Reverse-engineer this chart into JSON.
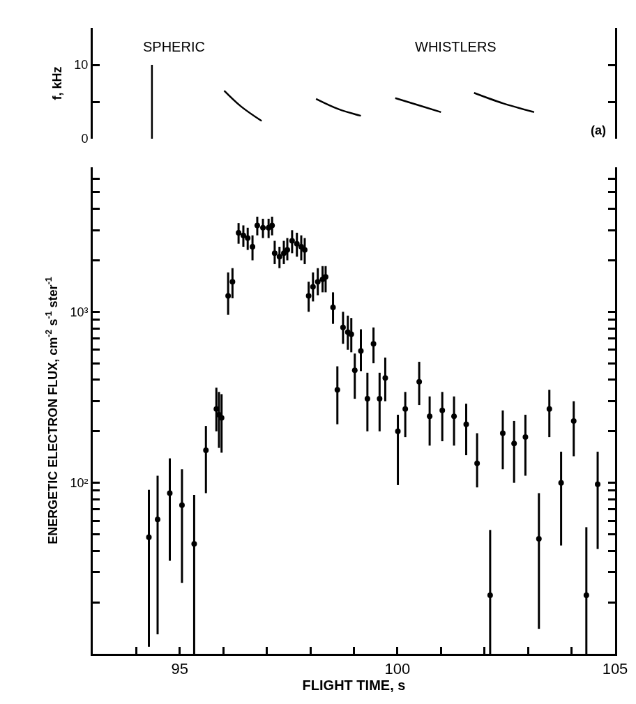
{
  "chart_data": [
    {
      "type": "line",
      "ylabel": "f, kHz",
      "xlim": [
        93,
        105
      ],
      "ylim": [
        0,
        15
      ],
      "yticks": [
        0,
        {
          "value": 5,
          "label": null
        },
        10
      ],
      "tick_labels": "y",
      "line_style": "solid",
      "annotations": [
        "SPHERIC",
        "WHISTLERS",
        "(a)"
      ],
      "series": [
        {
          "color": "#000000",
          "x": [
            94.36,
            94.36
          ],
          "values": [
            0,
            10
          ]
        },
        {
          "color": "#000000",
          "x": [
            96.02,
            96.4,
            96.88
          ],
          "values": [
            6.5,
            4.4,
            2.4
          ]
        },
        {
          "color": "#000000",
          "x": [
            98.13,
            98.65,
            99.16
          ],
          "values": [
            5.4,
            4.0,
            3.1
          ]
        },
        {
          "color": "#000000",
          "x": [
            99.95,
            100.5,
            101.0
          ],
          "values": [
            5.5,
            4.5,
            3.6
          ]
        },
        {
          "color": "#000000",
          "x": [
            101.76,
            102.42,
            103.14
          ],
          "values": [
            6.2,
            4.8,
            3.6
          ]
        }
      ]
    },
    {
      "type": "scatter",
      "xlabel": "FLIGHT TIME, s",
      "ylabel": "ENERGETIC ELECTRON FLUX, cm$^{-2}$ s$^{-1}$ ster$^{-1}$",
      "log": "y",
      "marker": "circle",
      "color": "#000000",
      "xlim": [
        93,
        105
      ],
      "ylim": [
        10,
        7000
      ],
      "xticks": [
        {
          "value": 94,
          "label": null
        },
        95,
        {
          "value": 96,
          "label": null
        },
        {
          "value": 97,
          "label": null
        },
        {
          "value": 98,
          "label": null
        },
        {
          "value": 99,
          "label": null
        },
        100,
        {
          "value": 101,
          "label": null
        },
        {
          "value": 102,
          "label": null
        },
        {
          "value": 103,
          "label": null
        },
        {
          "value": 104,
          "label": null
        },
        105
      ],
      "yticks": [
        {
          "value": 20,
          "label": null
        },
        {
          "value": 30,
          "label": null
        },
        {
          "value": 40,
          "label": null
        },
        {
          "value": 50,
          "label": null
        },
        {
          "value": 60,
          "label": null
        },
        {
          "value": 70,
          "label": null
        },
        {
          "value": 80,
          "label": null
        },
        {
          "value": 90,
          "label": null
        },
        {
          "value": 100,
          "label": "10²"
        },
        {
          "value": 200,
          "label": null
        },
        {
          "value": 300,
          "label": null
        },
        {
          "value": 400,
          "label": null
        },
        {
          "value": 500,
          "label": null
        },
        {
          "value": 600,
          "label": null
        },
        {
          "value": 700,
          "label": null
        },
        {
          "value": 800,
          "label": null
        },
        {
          "value": 900,
          "label": null
        },
        {
          "value": 1000,
          "label": "10³"
        },
        {
          "value": 2000,
          "label": null
        },
        {
          "value": 3000,
          "label": null
        },
        {
          "value": 4000,
          "label": null
        },
        {
          "value": 5000,
          "label": null
        },
        {
          "value": 6000,
          "label": null
        }
      ],
      "x": [
        94.29,
        94.49,
        94.77,
        95.05,
        95.33,
        95.6,
        95.84,
        95.9,
        95.96,
        96.11,
        96.21,
        96.35,
        96.46,
        96.56,
        96.67,
        96.78,
        96.91,
        97.04,
        97.12,
        97.18,
        97.29,
        97.39,
        97.47,
        97.58,
        97.69,
        97.79,
        97.87,
        97.96,
        98.06,
        98.17,
        98.28,
        98.35,
        98.52,
        98.62,
        98.75,
        98.86,
        98.94,
        99.02,
        99.16,
        99.31,
        99.45,
        99.59,
        99.72,
        100.01,
        100.18,
        100.5,
        100.74,
        101.03,
        101.3,
        101.58,
        101.83,
        102.13,
        102.42,
        102.68,
        102.94,
        103.25,
        103.49,
        103.76,
        104.05,
        104.34,
        104.6
      ],
      "values": [
        48,
        61,
        87,
        74,
        44,
        155,
        270,
        250,
        240,
        1240,
        1500,
        2900,
        2800,
        2700,
        2400,
        3200,
        3100,
        3100,
        3200,
        2200,
        2100,
        2200,
        2300,
        2600,
        2500,
        2400,
        2300,
        1240,
        1400,
        1500,
        1550,
        1600,
        1060,
        350,
        810,
        760,
        740,
        455,
        590,
        310,
        650,
        310,
        410,
        200,
        270,
        390,
        245,
        265,
        245,
        220,
        130,
        22,
        195,
        170,
        185,
        47,
        270,
        100,
        230,
        22,
        98
      ],
      "errors": [
        [
          11,
          91
        ],
        [
          13,
          110
        ],
        [
          35,
          139
        ],
        [
          26,
          120
        ],
        [
          10,
          85
        ],
        [
          87,
          215
        ],
        [
          200,
          360
        ],
        [
          160,
          340
        ],
        [
          150,
          330
        ],
        [
          960,
          1700
        ],
        [
          1200,
          1800
        ],
        [
          2500,
          3300
        ],
        [
          2400,
          3200
        ],
        [
          2300,
          3100
        ],
        [
          2000,
          2800
        ],
        [
          2800,
          3600
        ],
        [
          2700,
          3500
        ],
        [
          2700,
          3500
        ],
        [
          2800,
          3600
        ],
        [
          1900,
          2600
        ],
        [
          1800,
          2400
        ],
        [
          1900,
          2600
        ],
        [
          2000,
          2700
        ],
        [
          2200,
          3000
        ],
        [
          2100,
          2900
        ],
        [
          2000,
          2800
        ],
        [
          1900,
          2700
        ],
        [
          1000,
          1500
        ],
        [
          1150,
          1700
        ],
        [
          1250,
          1800
        ],
        [
          1300,
          1850
        ],
        [
          1300,
          1850
        ],
        [
          850,
          1300
        ],
        [
          220,
          480
        ],
        [
          650,
          1000
        ],
        [
          600,
          950
        ],
        [
          580,
          920
        ],
        [
          310,
          570
        ],
        [
          450,
          790
        ],
        [
          200,
          440
        ],
        [
          500,
          810
        ],
        [
          200,
          440
        ],
        [
          300,
          540
        ],
        [
          97,
          250
        ],
        [
          185,
          340
        ],
        [
          285,
          510
        ],
        [
          165,
          320
        ],
        [
          175,
          340
        ],
        [
          165,
          320
        ],
        [
          145,
          290
        ],
        [
          94,
          195
        ],
        [
          10,
          53
        ],
        [
          120,
          265
        ],
        [
          100,
          230
        ],
        [
          110,
          250
        ],
        [
          14,
          87
        ],
        [
          185,
          350
        ],
        [
          43,
          152
        ],
        [
          143,
          300
        ],
        [
          10,
          55
        ],
        [
          41,
          152
        ]
      ]
    }
  ]
}
